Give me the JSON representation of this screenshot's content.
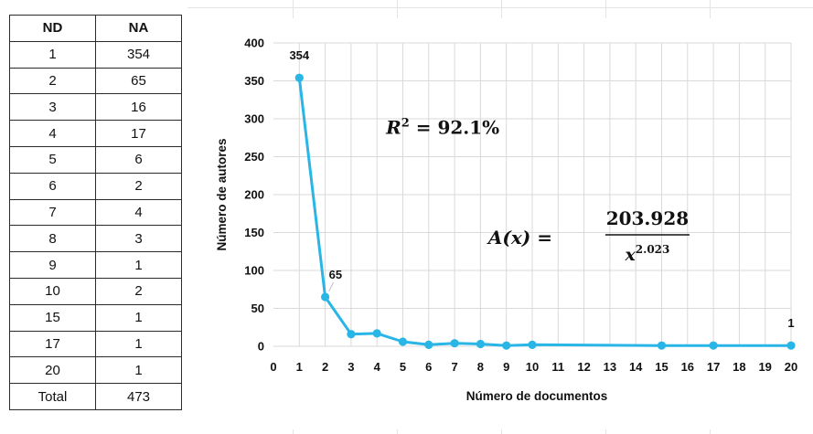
{
  "table": {
    "headers": [
      "ND",
      "NA"
    ],
    "rows": [
      [
        "1",
        "354"
      ],
      [
        "2",
        "65"
      ],
      [
        "3",
        "16"
      ],
      [
        "4",
        "17"
      ],
      [
        "5",
        "6"
      ],
      [
        "6",
        "2"
      ],
      [
        "7",
        "4"
      ],
      [
        "8",
        "3"
      ],
      [
        "9",
        "1"
      ],
      [
        "10",
        "2"
      ],
      [
        "15",
        "1"
      ],
      [
        "17",
        "1"
      ],
      [
        "20",
        "1"
      ]
    ],
    "total_label": "Total",
    "total_value": "473"
  },
  "chart_data": {
    "type": "line",
    "x": [
      1,
      2,
      3,
      4,
      5,
      6,
      7,
      8,
      9,
      10,
      15,
      17,
      20
    ],
    "series": [
      {
        "values": [
          354,
          65,
          16,
          17,
          6,
          2,
          4,
          3,
          1,
          2,
          1,
          1,
          1
        ],
        "color": "#29b6e6"
      }
    ],
    "data_labels": [
      {
        "x": 1,
        "text": "354"
      },
      {
        "x": 2,
        "text": "65"
      },
      {
        "x": 20,
        "text": "1"
      }
    ],
    "xlabel": "Número de documentos",
    "ylabel": "Número de autores",
    "xlim": [
      0,
      20
    ],
    "ylim": [
      0,
      400
    ],
    "xticks": [
      "0",
      "1",
      "2",
      "3",
      "4",
      "5",
      "6",
      "7",
      "8",
      "9",
      "10",
      "11",
      "12",
      "13",
      "14",
      "15",
      "16",
      "17",
      "18",
      "19",
      "20"
    ],
    "yticks": [
      "0",
      "50",
      "100",
      "150",
      "200",
      "250",
      "300",
      "350",
      "400"
    ],
    "grid": true,
    "annotations": {
      "r2_prefix": "R",
      "r2_sup": "2",
      "r2_rest": " = 92.1%",
      "eq_lhs": "A(x) =",
      "eq_num": "203.928",
      "eq_den_base": "x",
      "eq_den_sup": "2.023"
    }
  }
}
